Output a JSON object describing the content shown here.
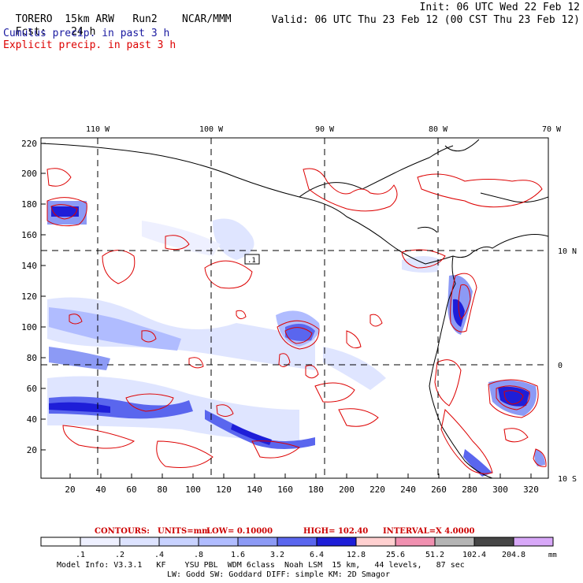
{
  "header": {
    "model": "TORERO",
    "resolution": "15km ARW",
    "run": "Run2",
    "org": "NCAR/MMM",
    "init": "Init: 06 UTC Wed 22 Feb 12",
    "fcst_label": "Fcst:",
    "fcst_value": "24 h",
    "valid": "Valid: 06 UTC Thu 23 Feb 12 (00 CST Thu 23 Feb 12)",
    "cumulus_title": "Cumulus precip. in past 3 h",
    "explicit_title": "Explicit precip. in past 3 h"
  },
  "colors": {
    "cumulus_title": "#1a1aa0",
    "explicit_title": "#dd0000",
    "contour": "#dd0000",
    "contour_text": "#cc0000"
  },
  "map": {
    "top_lon_labels": [
      "110 W",
      "100 W",
      "90 W",
      "80 W",
      "70 W"
    ],
    "right_lat_labels": [
      "10 N",
      "0",
      "10 S"
    ],
    "y_ticks": [
      "220",
      "200",
      "180",
      "160",
      "140",
      "120",
      "100",
      "80",
      "60",
      "40",
      "20"
    ],
    "x_ticks": [
      "20",
      "40",
      "60",
      "80",
      "100",
      "120",
      "140",
      "160",
      "180",
      "200",
      "220",
      "240",
      "260",
      "280",
      "300",
      "320"
    ],
    "highlight_label": ".1"
  },
  "contours_info": {
    "label": "CONTOURS:",
    "units": "UNITS=mm",
    "low": "LOW= 0.10000",
    "high": "HIGH= 102.40",
    "interval": "INTERVAL=X 4.0000"
  },
  "colorbar": {
    "labels": [
      ".1",
      ".2",
      ".4",
      ".8",
      "1.6",
      "3.2",
      "6.4",
      "12.8",
      "25.6",
      "51.2",
      "102.4",
      "204.8"
    ],
    "unit": "mm",
    "colors": [
      "#ffffff",
      "#eef0ff",
      "#dde3ff",
      "#c8d2ff",
      "#b0bcff",
      "#8c9af5",
      "#5a66ee",
      "#1e1ed8",
      "#ffd0d0",
      "#f090b0",
      "#b4b4b4",
      "#464646",
      "#d8a8f8"
    ]
  },
  "footer": {
    "line1": "Model Info: V3.3.1   KF    YSU PBL  WDM 6class  Noah LSM  15 km,   44 levels,   87 sec",
    "line2": "LW: Godd SW: Goddard DIFF: simple KM: 2D Smagor"
  }
}
